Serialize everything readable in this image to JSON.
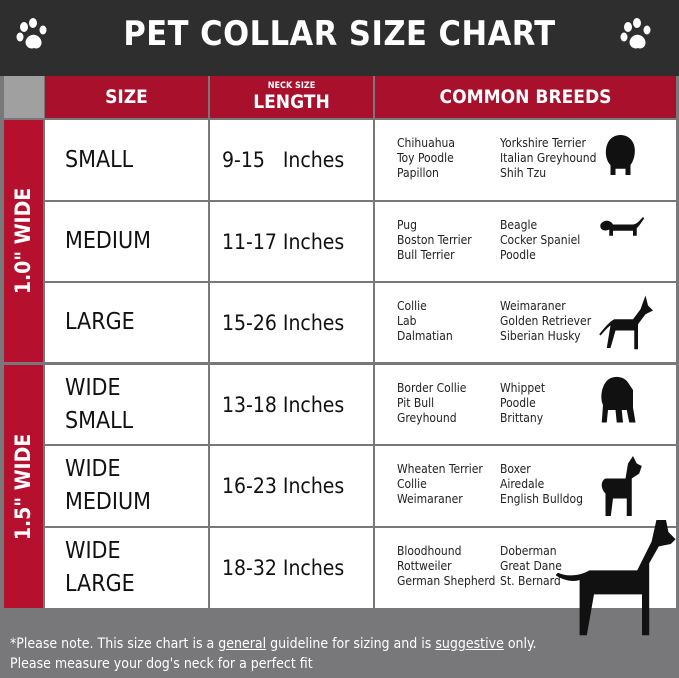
{
  "title": "PET COLLAR SIZE CHART",
  "columns": {
    "size": "SIZE",
    "length_sub": "NECK SIZE",
    "length": "LENGTH",
    "breeds": "COMMON BREEDS"
  },
  "groups": [
    {
      "label": "1.0\" WIDE"
    },
    {
      "label": "1.5\" WIDE"
    }
  ],
  "rows": [
    {
      "size": [
        "SMALL",
        ""
      ],
      "length": "9-15   Inches",
      "breeds_a": [
        "Chihuahua",
        "Toy Poodle",
        "Papillon"
      ],
      "breeds_b": [
        "Yorkshire Terrier",
        "Italian Greyhound",
        "Shih Tzu"
      ],
      "icon": "small-dog-icon"
    },
    {
      "size": [
        "MEDIUM",
        ""
      ],
      "length": "11-17 Inches",
      "breeds_a": [
        "Pug",
        "Boston Terrier",
        "Bull Terrier"
      ],
      "breeds_b": [
        "Beagle",
        "Cocker Spaniel",
        "Poodle"
      ],
      "icon": "dachshund-icon"
    },
    {
      "size": [
        "LARGE",
        ""
      ],
      "length": "15-26 Inches",
      "breeds_a": [
        "Collie",
        "Lab",
        "Dalmatian"
      ],
      "breeds_b": [
        "Weimaraner",
        "Golden Retriever",
        "Siberian Husky"
      ],
      "icon": "shepherd-dog-icon"
    },
    {
      "size": [
        "WIDE",
        "SMALL"
      ],
      "length": "13-18 Inches",
      "breeds_a": [
        "Border Collie",
        "Pit Bull",
        "Greyhound"
      ],
      "breeds_b": [
        "Whippet",
        "Poodle",
        "Brittany"
      ],
      "icon": "bulldog-icon"
    },
    {
      "size": [
        "WIDE",
        "MEDIUM"
      ],
      "length": "16-23 Inches",
      "breeds_a": [
        "Wheaten Terrier",
        "Collie",
        "Weimaraner"
      ],
      "breeds_b": [
        "Boxer",
        "Airedale",
        "English Bulldog"
      ],
      "icon": "pitbull-icon"
    },
    {
      "size": [
        "WIDE",
        "LARGE"
      ],
      "length": "18-32 Inches",
      "breeds_a": [
        "Bloodhound",
        "Rottweiler",
        "German Shepherd"
      ],
      "breeds_b": [
        "Doberman",
        "Great Dane",
        "St. Bernard"
      ],
      "icon": "doberman-icon"
    }
  ],
  "footer": {
    "p1": "*Please note. This size chart is a ",
    "u1": "general",
    "p2": " guideline for sizing and is ",
    "u2": "suggestive",
    "p3": " only.",
    "line2": "Please measure your dog's neck for a perfect fit"
  },
  "colors": {
    "header": "#2e2e2e",
    "accent": "#a8102c",
    "footer": "#78787b"
  }
}
